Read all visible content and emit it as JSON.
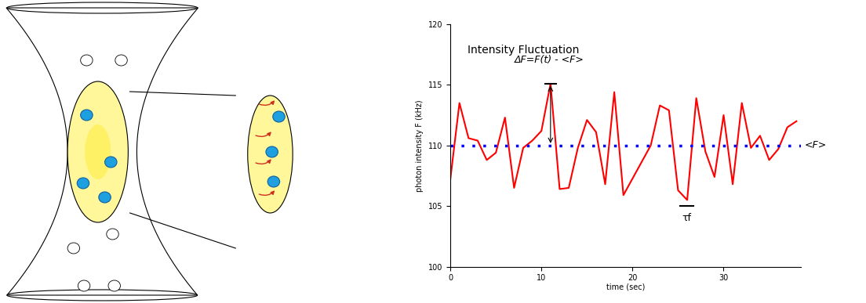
{
  "chart_data": {
    "type": "line",
    "title": "Intensity Fluctuation",
    "x_label": "time (sec)",
    "y_label": "photon intensity F (kHz)",
    "x": [
      0,
      1,
      2,
      3,
      4,
      5,
      6,
      7,
      8,
      9,
      10,
      11,
      12,
      13,
      14,
      15,
      16,
      17,
      18,
      19,
      22,
      23,
      24,
      25,
      26,
      27,
      28,
      29,
      30,
      31,
      32,
      33,
      34,
      35,
      36,
      37,
      38
    ],
    "values": [
      107.2,
      113.5,
      110.6,
      110.4,
      108.8,
      109.4,
      112.3,
      106.5,
      109.8,
      110.4,
      111.2,
      115.1,
      106.4,
      106.5,
      109.8,
      112.1,
      111.1,
      106.8,
      114.4,
      105.9,
      110.0,
      113.3,
      112.9,
      106.3,
      105.5,
      113.9,
      109.5,
      107.4,
      112.5,
      106.8,
      113.5,
      109.8,
      110.8,
      108.8,
      109.7,
      111.5,
      112.0
    ],
    "color": "#ff0000",
    "mean": {
      "value": 110,
      "label": "<F>",
      "color": "#0000ff",
      "line_style": "dotted"
    },
    "delta_label": "ΔF=F(t) - <F>",
    "tau": {
      "label": "τf",
      "x": [
        25.2,
        26.7
      ],
      "y": 105
    },
    "xlim": [
      0,
      38.5
    ],
    "xticks": [
      0,
      10,
      20,
      30
    ],
    "ylim": [
      100,
      120
    ],
    "yticks": [
      100,
      105,
      110,
      115,
      120
    ],
    "grid": false
  }
}
